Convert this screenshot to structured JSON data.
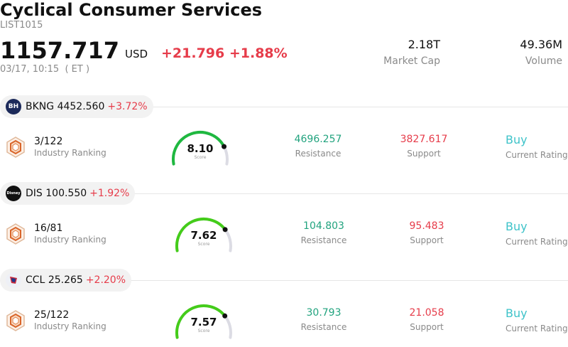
{
  "header": {
    "title": "Cyclical Consumer Services",
    "code": "LIST1015",
    "price": "1157.717",
    "currency": "USD",
    "change": "+21.796 +1.88%",
    "time": "03/17, 10:15  ( ET )",
    "market_cap_value": "2.18T",
    "market_cap_label": "Market Cap",
    "volume_value": "49.36M",
    "volume_label": "Volume"
  },
  "stocks": [
    {
      "ticker": "BKNG",
      "price": "4452.560",
      "change_pct": "+3.72%",
      "logo_text": "BH",
      "ranking": "3/122",
      "ranking_label": "Industry Ranking",
      "score": "8.10",
      "score_label": "Score",
      "score_fraction": 0.81,
      "resistance": "4696.257",
      "resistance_label": "Resistance",
      "support": "3827.617",
      "support_label": "Support",
      "rating": "Buy",
      "rating_label": "Current Rating"
    },
    {
      "ticker": "DIS",
      "price": "100.550",
      "change_pct": "+1.92%",
      "logo_text": "Disney",
      "ranking": "16/81",
      "ranking_label": "Industry Ranking",
      "score": "7.62",
      "score_label": "Score",
      "score_fraction": 0.762,
      "resistance": "104.803",
      "resistance_label": "Resistance",
      "support": "95.483",
      "support_label": "Support",
      "rating": "Buy",
      "rating_label": "Current Rating"
    },
    {
      "ticker": "CCL",
      "price": "25.265",
      "change_pct": "+2.20%",
      "logo_text": "",
      "ranking": "25/122",
      "ranking_label": "Industry Ranking",
      "score": "7.57",
      "score_label": "Score",
      "score_fraction": 0.757,
      "resistance": "30.793",
      "resistance_label": "Resistance",
      "support": "21.058",
      "support_label": "Support",
      "rating": "Buy",
      "rating_label": "Current Rating"
    }
  ],
  "colors": {
    "up": "#e63c4a",
    "resistance": "#21a37e",
    "rating": "#3ec3c9",
    "gauge_track": "#dcdce4",
    "gauge_high": "#1fb840",
    "gauge_mid": "#44cc1a"
  }
}
